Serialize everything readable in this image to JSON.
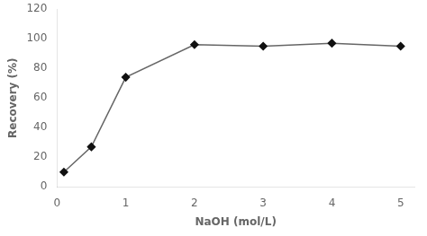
{
  "chart_data": {
    "type": "line",
    "x": [
      0.1,
      0.5,
      1.0,
      2.0,
      3.0,
      4.0,
      5.0
    ],
    "values": [
      10,
      27,
      74,
      96,
      95,
      97,
      95
    ],
    "xlabel": "NaOH (mol/L)",
    "ylabel": "Recovery (%)",
    "xlim": [
      0,
      5.2
    ],
    "ylim": [
      0,
      120
    ],
    "xticks": [
      0,
      1,
      2,
      3,
      4,
      5
    ],
    "yticks": [
      0,
      20,
      40,
      60,
      80,
      100,
      120
    ],
    "color": "#666666",
    "colors": [
      "#111111",
      "#111111",
      "#111111",
      "#111111",
      "#111111",
      "#111111",
      "#111111"
    ],
    "marker": "diamond",
    "grid": false
  }
}
